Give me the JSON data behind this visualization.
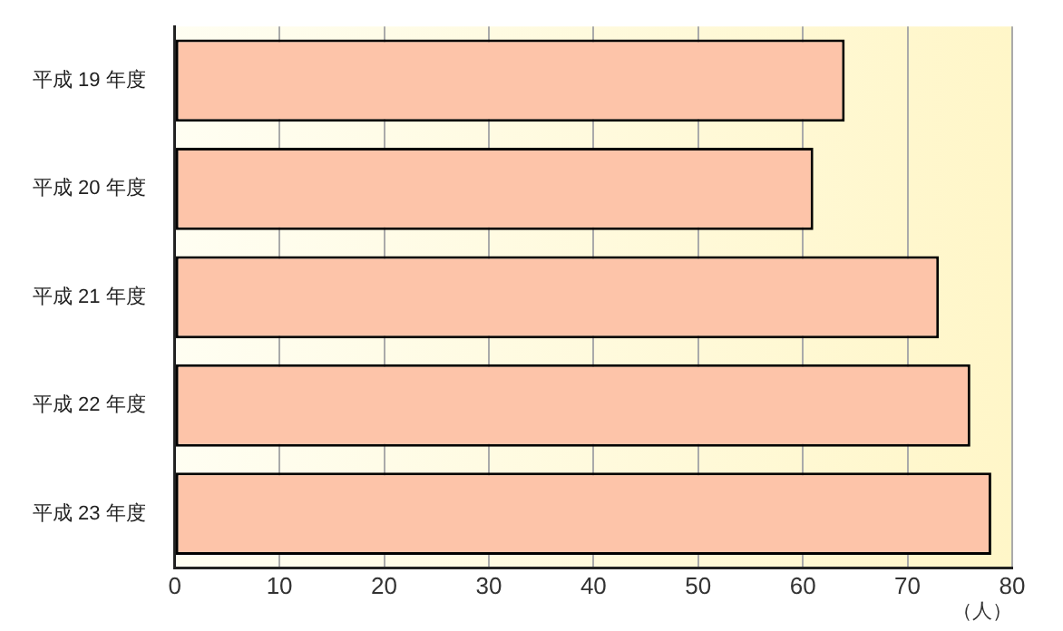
{
  "chart_data": {
    "type": "bar",
    "orientation": "horizontal",
    "categories": [
      "平成 19 年度",
      "平成 20 年度",
      "平成 21 年度",
      "平成 22 年度",
      "平成 23 年度"
    ],
    "values": [
      64,
      61,
      73,
      76,
      78
    ],
    "color": "#fdc4a9",
    "xlabel": "（人）",
    "xlim": [
      0,
      80
    ],
    "xticks": [
      0,
      10,
      20,
      30,
      40,
      50,
      60,
      70,
      80
    ],
    "grid": "x",
    "legend": false
  }
}
